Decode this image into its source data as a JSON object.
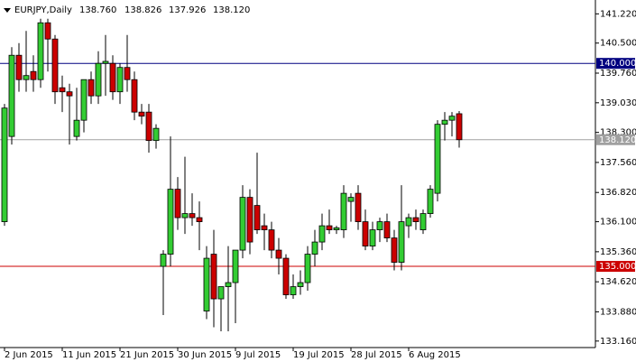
{
  "chart_data": {
    "type": "candlestick",
    "title": "EURJPY,Daily",
    "header_values": [
      "138.760",
      "138.826",
      "137.926",
      "138.120"
    ],
    "categories": [
      "2 Jun 2015",
      null,
      null,
      null,
      null,
      null,
      null,
      null,
      "11 Jun 2015",
      null,
      null,
      null,
      null,
      null,
      null,
      null,
      "21 Jun 2015",
      null,
      null,
      null,
      null,
      null,
      null,
      null,
      "30 Jun 2015",
      null,
      null,
      null,
      null,
      null,
      null,
      null,
      "9 Jul 2015",
      null,
      null,
      null,
      null,
      null,
      null,
      null,
      "19 Jul 2015",
      null,
      null,
      null,
      null,
      null,
      null,
      null,
      "28 Jul 2015",
      null,
      null,
      null,
      null,
      null,
      null,
      null,
      "6 Aug 2015",
      null,
      null,
      null,
      null,
      null,
      null,
      null
    ],
    "open": [
      136.1,
      138.2,
      140.2,
      139.6,
      139.8,
      139.6,
      141.0,
      140.6,
      139.4,
      139.3,
      138.2,
      138.6,
      139.6,
      139.2,
      140.0,
      140.0,
      139.3,
      139.9,
      139.6,
      138.8,
      138.8,
      138.1,
      135.0,
      135.3,
      136.9,
      136.2,
      136.3,
      136.2,
      133.9,
      135.3,
      134.2,
      134.5,
      134.6,
      135.4,
      136.7,
      136.5,
      136.0,
      135.9,
      135.4,
      135.2,
      134.3,
      134.5,
      134.6,
      135.3,
      135.6,
      136.0,
      135.9,
      135.9,
      136.6,
      136.8,
      136.1,
      135.5,
      135.9,
      136.1,
      135.7,
      135.1,
      136.0,
      136.2,
      135.9,
      136.3,
      136.8,
      138.5,
      138.6,
      138.76
    ],
    "high": [
      139.0,
      140.4,
      140.5,
      140.8,
      140.2,
      141.1,
      141.1,
      140.7,
      139.7,
      139.5,
      139.4,
      139.6,
      139.8,
      140.3,
      140.7,
      140.2,
      140.0,
      140.7,
      139.8,
      139.0,
      139.0,
      138.5,
      135.4,
      138.2,
      137.2,
      137.7,
      136.8,
      136.6,
      135.5,
      135.9,
      134.5,
      135.5,
      135.4,
      137.0,
      136.9,
      137.8,
      136.3,
      136.1,
      135.7,
      135.3,
      134.8,
      134.9,
      135.5,
      135.9,
      136.3,
      136.4,
      136.0,
      137.0,
      136.8,
      137.0,
      136.4,
      136.1,
      136.2,
      136.3,
      135.9,
      137.0,
      136.3,
      136.4,
      136.4,
      137.0,
      138.6,
      138.8,
      138.8,
      138.826
    ],
    "low": [
      136.0,
      138.0,
      139.3,
      139.3,
      139.3,
      139.4,
      139.8,
      139.0,
      138.8,
      138.0,
      138.1,
      138.3,
      139.0,
      139.0,
      139.2,
      139.1,
      139.0,
      139.3,
      138.6,
      138.5,
      137.8,
      137.9,
      133.8,
      135.0,
      135.9,
      135.8,
      136.0,
      135.4,
      133.7,
      133.5,
      133.4,
      133.4,
      133.6,
      135.2,
      135.3,
      135.8,
      135.4,
      135.2,
      134.8,
      134.2,
      134.2,
      134.3,
      134.4,
      135.0,
      135.4,
      135.8,
      135.8,
      135.7,
      136.1,
      135.9,
      135.4,
      135.4,
      135.6,
      135.6,
      134.9,
      134.9,
      135.7,
      135.9,
      135.8,
      136.2,
      136.6,
      138.1,
      138.2,
      137.926
    ],
    "close": [
      138.9,
      140.2,
      139.6,
      139.7,
      139.6,
      141.0,
      140.6,
      139.3,
      139.3,
      139.2,
      138.6,
      139.6,
      139.2,
      140.0,
      140.05,
      139.3,
      139.9,
      139.6,
      138.8,
      138.7,
      138.1,
      138.4,
      135.3,
      136.9,
      136.2,
      136.3,
      136.2,
      136.1,
      135.2,
      134.2,
      134.5,
      134.6,
      135.4,
      136.7,
      135.6,
      135.9,
      135.9,
      135.4,
      135.2,
      134.3,
      134.5,
      134.6,
      135.3,
      135.6,
      136.0,
      135.9,
      135.95,
      136.8,
      136.7,
      136.1,
      135.5,
      135.9,
      136.1,
      135.7,
      135.1,
      136.1,
      136.2,
      136.1,
      136.3,
      136.9,
      138.5,
      138.6,
      138.7,
      138.12
    ],
    "up_color": "#33cc33",
    "down_color": "#cc0000",
    "ylim": [
      133.0,
      141.45
    ],
    "yticks": [
      {
        "value": 141.22,
        "label": "141.220"
      },
      {
        "value": 140.5,
        "label": "140.500"
      },
      {
        "value": 139.76,
        "label": "139.760"
      },
      {
        "value": 139.03,
        "label": "139.030"
      },
      {
        "value": 138.3,
        "label": "138.300"
      },
      {
        "value": 137.56,
        "label": "137.560"
      },
      {
        "value": 136.82,
        "label": "136.820"
      },
      {
        "value": 136.1,
        "label": "136.100"
      },
      {
        "value": 135.36,
        "label": "135.360"
      },
      {
        "value": 134.62,
        "label": "134.620"
      },
      {
        "value": 133.88,
        "label": "133.880"
      },
      {
        "value": 133.16,
        "label": "133.160"
      }
    ],
    "levels": [
      {
        "value": 140.0,
        "label": "140.000",
        "color": "#000080"
      },
      {
        "value": 135.0,
        "label": "135.000",
        "color": "#cc0000"
      },
      {
        "value": 138.12,
        "label": "138.120",
        "color": "#a0a0a0"
      }
    ]
  }
}
